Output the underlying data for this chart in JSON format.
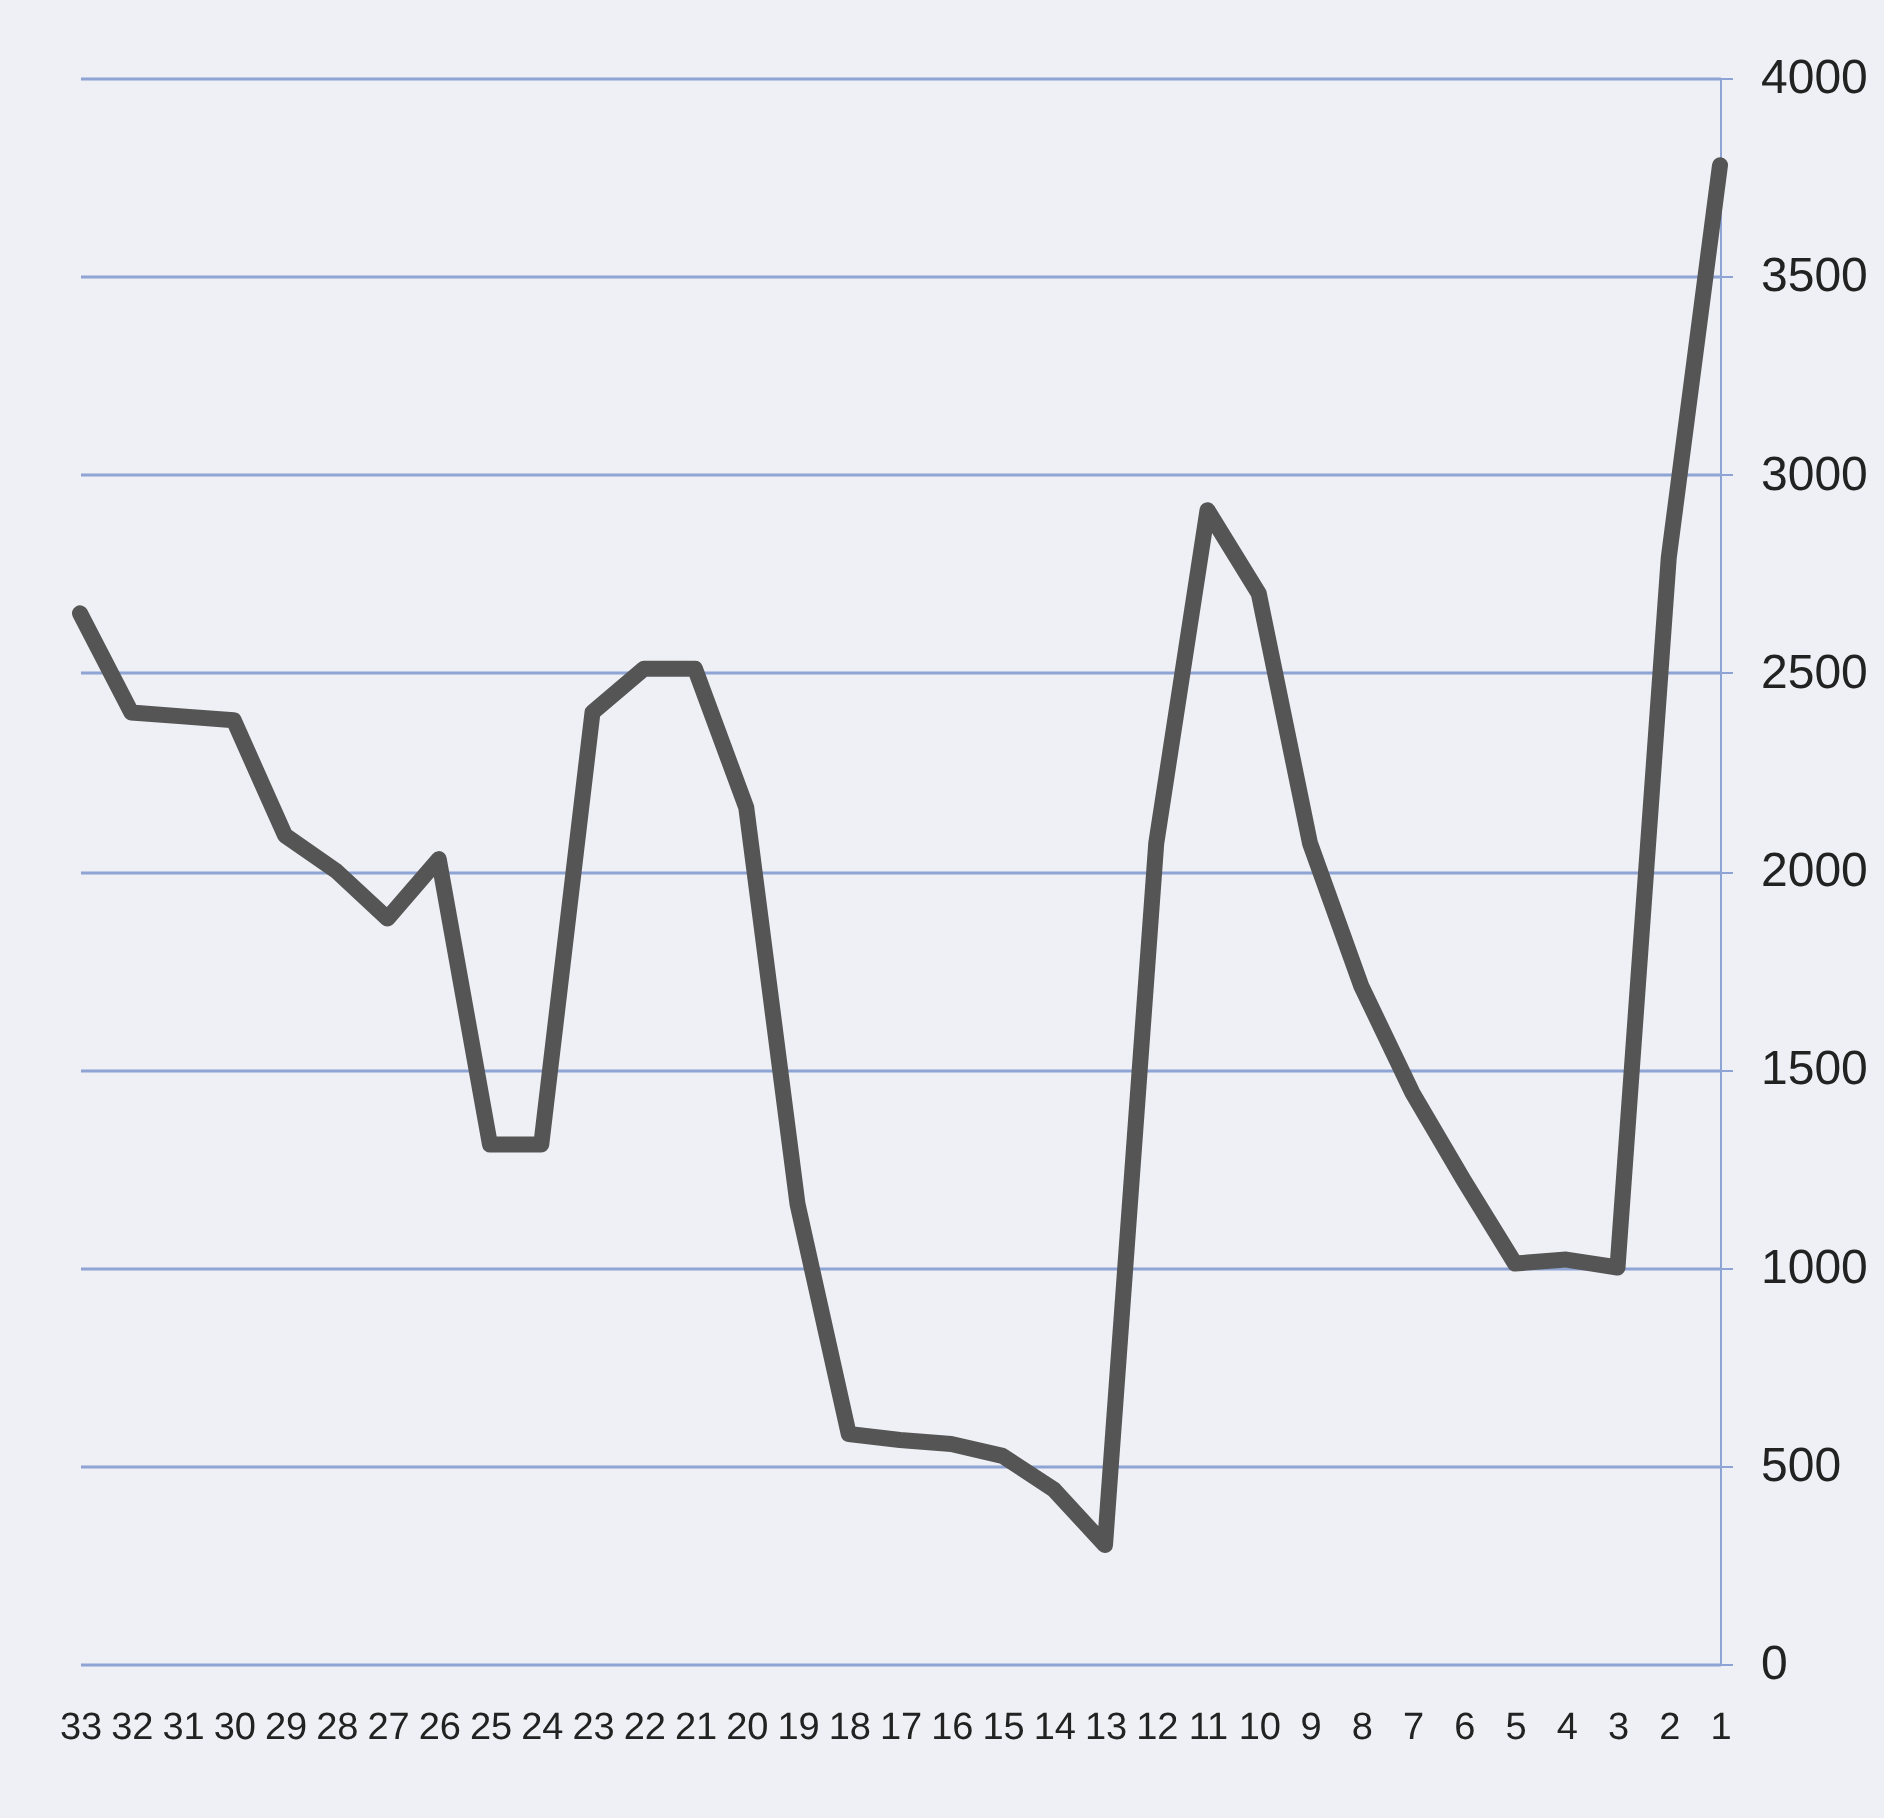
{
  "chart_data": {
    "type": "line",
    "categories": [
      "33",
      "32",
      "31",
      "30",
      "29",
      "28",
      "27",
      "26",
      "25",
      "24",
      "23",
      "22",
      "21",
      "20",
      "19",
      "18",
      "17",
      "16",
      "15",
      "14",
      "13",
      "12",
      "11",
      "10",
      "9",
      "8",
      "7",
      "6",
      "5",
      "4",
      "3",
      "2",
      "1"
    ],
    "series": [
      {
        "color": "#555555",
        "values": [
          2650,
          2400,
          2390,
          2380,
          2090,
          2000,
          1880,
          2030,
          1310,
          1310,
          2400,
          2510,
          2510,
          2160,
          1160,
          580,
          565,
          555,
          525,
          440,
          300,
          2070,
          2910,
          2700,
          2070,
          1710,
          1440,
          1220,
          1010,
          1020,
          1000,
          2790,
          3780
        ]
      }
    ],
    "ylim": [
      0,
      4000
    ],
    "yticks": [
      0,
      500,
      1000,
      1500,
      2000,
      2500,
      3000,
      3500,
      4000
    ],
    "grid": "y",
    "marker": "none",
    "line_style": "solid"
  }
}
